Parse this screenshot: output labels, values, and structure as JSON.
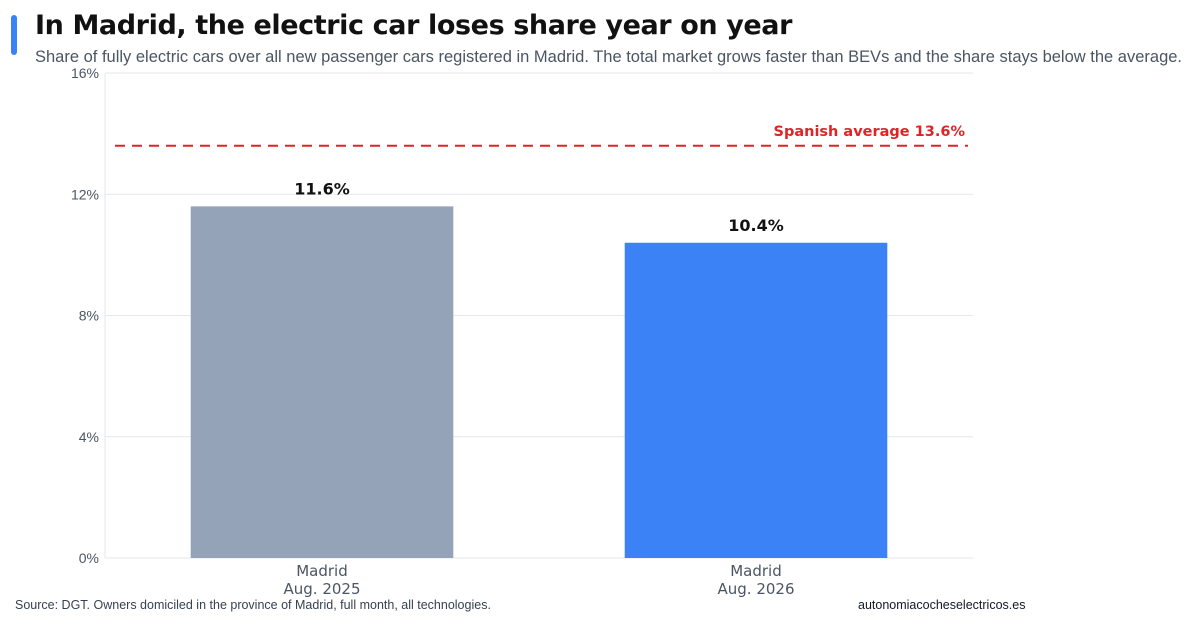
{
  "header": {
    "title": "In Madrid, the electric car loses share year on year",
    "subtitle": "Share of fully electric cars over all new passenger cars registered in Madrid. The total market grows faster than BEVs and the share stays below the average."
  },
  "footer": {
    "source": "Source: DGT. Owners domiciled in the province of Madrid, full month, all technologies.",
    "site": "autonomiacocheselectricos.es"
  },
  "colors": {
    "accent": "#3b82f6",
    "bar_2025": "#94a3b8",
    "bar_2026": "#3b82f6",
    "reference_line": "#dc2626",
    "grid": "#e5e7eb"
  },
  "chart_data": {
    "type": "bar",
    "categories": [
      [
        "Madrid",
        "Aug. 2025"
      ],
      [
        "Madrid",
        "Aug. 2026"
      ]
    ],
    "values": [
      11.6,
      10.4
    ],
    "value_labels": [
      "11.6%",
      "10.4%"
    ],
    "unit": "%",
    "ylim": [
      0,
      16
    ],
    "yticks": [
      0,
      4,
      8,
      12,
      16
    ],
    "ytick_labels": [
      "0%",
      "4%",
      "8%",
      "12%",
      "16%"
    ],
    "grid": true,
    "reference_line": {
      "value": 13.6,
      "label": "Spanish average 13.6%",
      "style": "dashed"
    }
  }
}
